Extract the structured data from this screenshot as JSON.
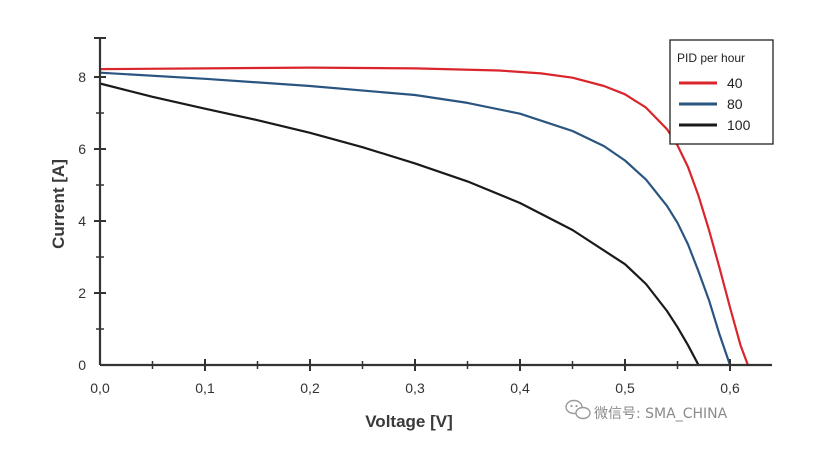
{
  "chart_data": {
    "type": "line",
    "title": "",
    "xlabel": "Voltage [V]",
    "ylabel": "Current [A]",
    "xlim": [
      0,
      0.65
    ],
    "ylim": [
      0,
      9
    ],
    "x_ticks": [
      0,
      0.1,
      0.2,
      0.3,
      0.4,
      0.5,
      0.6
    ],
    "x_tick_labels": [
      "0,0",
      "0,1",
      "0,2",
      "0,3",
      "0,4",
      "0,5",
      "0,6"
    ],
    "y_ticks": [
      0,
      2,
      4,
      6,
      8
    ],
    "y_tick_labels": [
      "0",
      "2",
      "4",
      "6",
      "8"
    ],
    "grid": false,
    "legend": {
      "title": "PID per hour",
      "placement": "top-right"
    },
    "series": [
      {
        "name": "40",
        "color": "#d9252b",
        "x": [
          0.0,
          0.1,
          0.2,
          0.3,
          0.38,
          0.42,
          0.45,
          0.48,
          0.5,
          0.52,
          0.54,
          0.55,
          0.56,
          0.57,
          0.58,
          0.59,
          0.6,
          0.61,
          0.617
        ],
        "y": [
          8.22,
          8.24,
          8.26,
          8.24,
          8.18,
          8.1,
          7.98,
          7.75,
          7.52,
          7.15,
          6.55,
          6.1,
          5.5,
          4.7,
          3.75,
          2.7,
          1.6,
          0.55,
          0.0
        ]
      },
      {
        "name": "80",
        "color": "#2a5580",
        "x": [
          0.0,
          0.1,
          0.2,
          0.3,
          0.35,
          0.4,
          0.45,
          0.48,
          0.5,
          0.52,
          0.54,
          0.55,
          0.56,
          0.57,
          0.58,
          0.59,
          0.6
        ],
        "y": [
          8.12,
          7.95,
          7.75,
          7.5,
          7.28,
          6.98,
          6.5,
          6.08,
          5.68,
          5.15,
          4.42,
          3.95,
          3.35,
          2.6,
          1.8,
          0.85,
          0.0
        ]
      },
      {
        "name": "100",
        "color": "#1a1a1a",
        "x": [
          0.0,
          0.05,
          0.1,
          0.15,
          0.2,
          0.25,
          0.3,
          0.35,
          0.4,
          0.45,
          0.5,
          0.52,
          0.54,
          0.55,
          0.56,
          0.57
        ],
        "y": [
          7.82,
          7.45,
          7.12,
          6.8,
          6.45,
          6.05,
          5.6,
          5.1,
          4.5,
          3.75,
          2.8,
          2.25,
          1.5,
          1.05,
          0.55,
          0.0
        ]
      }
    ]
  },
  "watermark": {
    "text": "微信号: SMA_CHINA",
    "icon": "wechat-icon"
  }
}
